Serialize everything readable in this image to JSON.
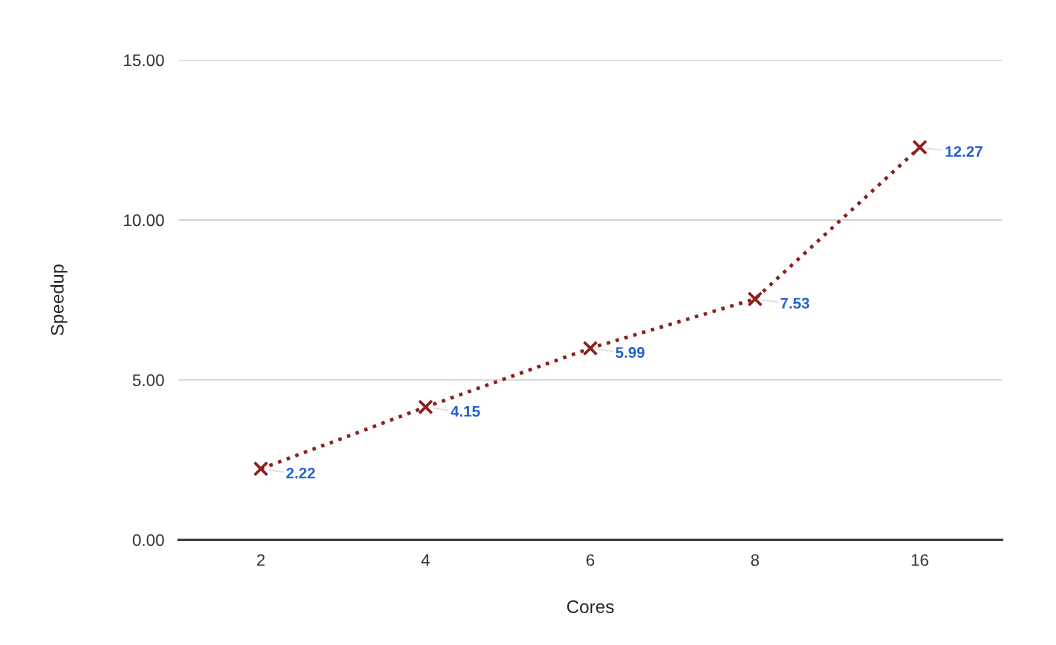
{
  "chart_data": {
    "type": "line",
    "xlabel": "Cores",
    "ylabel": "Speedup",
    "categories": [
      "2",
      "4",
      "6",
      "8",
      "16"
    ],
    "series": [
      {
        "color": "#8e1c1c",
        "values": [
          2.22,
          4.15,
          5.99,
          7.53,
          12.27
        ]
      }
    ],
    "ylim": [
      0,
      15
    ],
    "yticks": [
      {
        "value": 0,
        "label": "0.00"
      },
      {
        "value": 5,
        "label": "5.00"
      },
      {
        "value": 10,
        "label": "10.00"
      },
      {
        "value": 15,
        "label": "15.00"
      }
    ],
    "grid": "y",
    "marker": "cross",
    "line_style": "dotted",
    "data_labels": true,
    "legend": false
  }
}
